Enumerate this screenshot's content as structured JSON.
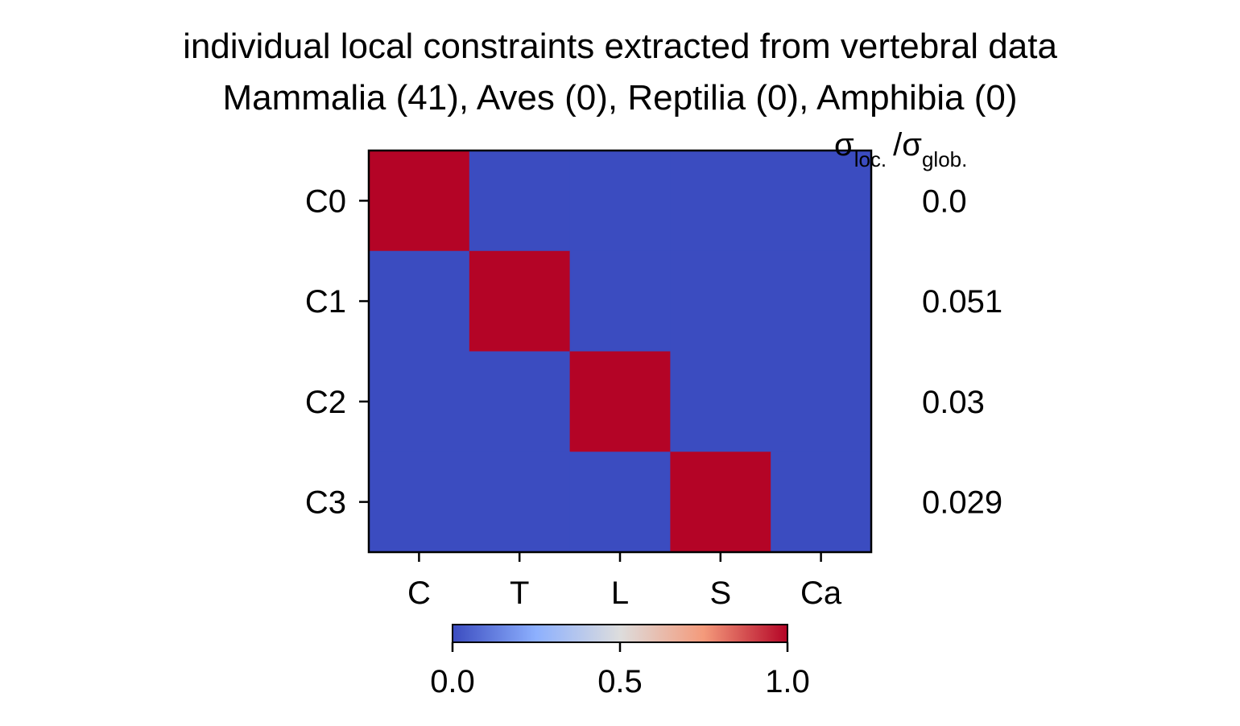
{
  "chart_data": {
    "type": "heatmap",
    "title": "individual local constraints extracted from vertebral data",
    "subtitle": "Mammalia (41), Aves (0), Reptilia (0), Amphibia (0)",
    "x_categories": [
      "C",
      "T",
      "L",
      "S",
      "Ca"
    ],
    "y_categories": [
      "C0",
      "C1",
      "C2",
      "C3"
    ],
    "values": [
      [
        1,
        0,
        0,
        0,
        0
      ],
      [
        0,
        1,
        0,
        0,
        0
      ],
      [
        0,
        0,
        1,
        0,
        0
      ],
      [
        0,
        0,
        0,
        1,
        0
      ]
    ],
    "colormap": "coolwarm",
    "color_low": "#3b4cc0",
    "color_mid": "#dddddd",
    "color_high": "#b40426",
    "vmin": 0.0,
    "vmax": 1.0,
    "colorbar": {
      "orientation": "horizontal",
      "ticks": [
        "0.0",
        "0.5",
        "1.0"
      ]
    },
    "right_column": {
      "header_symbol": "σ",
      "header_sub1": "loc.",
      "header_sep": "/",
      "header_sub2": "glob.",
      "values": [
        "0.0",
        "0.051",
        "0.03",
        "0.029"
      ]
    }
  }
}
